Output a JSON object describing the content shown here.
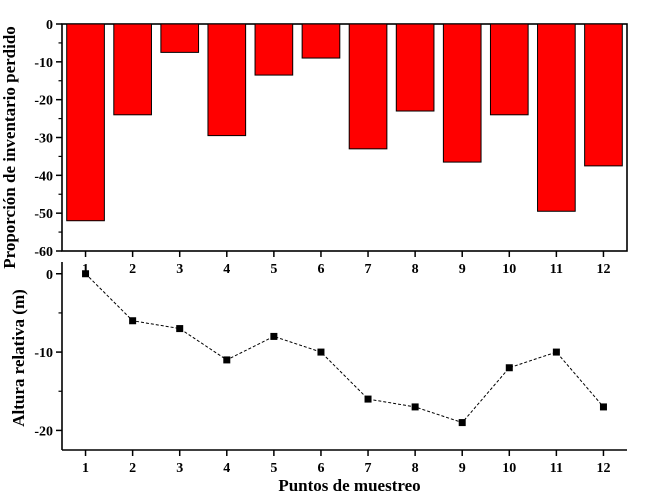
{
  "chart_data": [
    {
      "type": "bar",
      "categories": [
        "1",
        "2",
        "3",
        "4",
        "5",
        "6",
        "7",
        "8",
        "9",
        "10",
        "11",
        "12"
      ],
      "values": [
        -52,
        -24,
        -7.5,
        -29.5,
        -13.5,
        -9,
        -33,
        -23,
        -36.5,
        -24,
        -49.5,
        -37.5
      ],
      "ylabel": "Proporción de inventario perdido",
      "xlabel": "",
      "ylim": [
        -60,
        0
      ],
      "yticks": [
        0,
        -10,
        -20,
        -30,
        -40,
        -50,
        -60
      ],
      "ytick_labels": [
        "0",
        "-10",
        "-20",
        "-30",
        "-40",
        "-50",
        "-60"
      ],
      "bar_color": "#ff0000",
      "grid": false
    },
    {
      "type": "line",
      "x": [
        "1",
        "2",
        "3",
        "4",
        "5",
        "6",
        "7",
        "8",
        "9",
        "10",
        "11",
        "12"
      ],
      "values": [
        0,
        -6,
        -7,
        -11,
        -8,
        -10,
        -16,
        -17,
        -19,
        -12,
        -10,
        -17
      ],
      "ylabel": "Altura relativa (m)",
      "xlabel": "Puntos de muestreo",
      "ylim": [
        -22.5,
        1.5
      ],
      "yticks": [
        0,
        -10,
        -20
      ],
      "ytick_labels": [
        "0",
        "-10",
        "-20"
      ],
      "line_style": "dashed",
      "marker": "square",
      "line_color": "#000000",
      "grid": false
    }
  ]
}
